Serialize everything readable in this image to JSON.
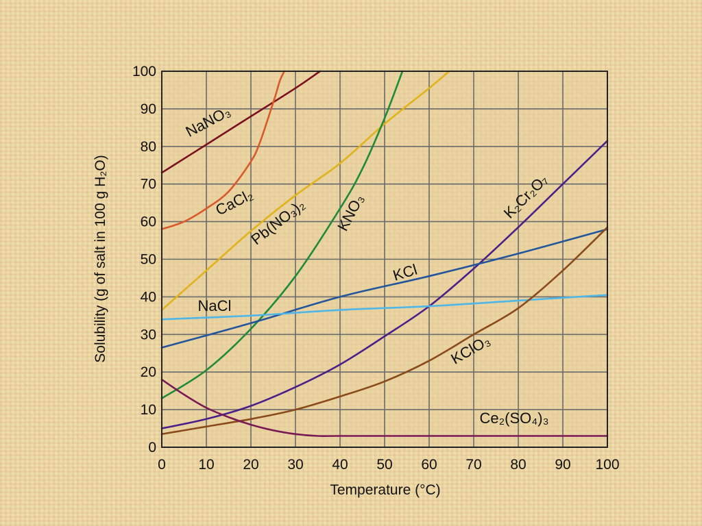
{
  "chart_data": {
    "type": "line",
    "title": "",
    "xlabel": "Temperature (°C)",
    "ylabel": "Solubility (g of salt in 100 g H₂O)",
    "xlim": [
      0,
      100
    ],
    "ylim": [
      0,
      100
    ],
    "xticks": [
      0,
      10,
      20,
      30,
      40,
      50,
      60,
      70,
      80,
      90,
      100
    ],
    "yticks": [
      0,
      10,
      20,
      30,
      40,
      50,
      60,
      70,
      80,
      90,
      100
    ],
    "grid": true,
    "legend": "inline labels",
    "series": [
      {
        "name": "NaNO₃",
        "color": "#7a1020",
        "x": [
          0,
          10,
          20,
          30,
          35.5
        ],
        "y": [
          73,
          80.5,
          88,
          95.5,
          100
        ]
      },
      {
        "name": "CaCl₂",
        "color": "#d9592a",
        "x": [
          0,
          5,
          10,
          15,
          20,
          22,
          24,
          25.5,
          26.5,
          27.5
        ],
        "y": [
          58,
          60,
          63.5,
          68,
          76,
          81,
          88,
          93.5,
          97.5,
          100
        ]
      },
      {
        "name": "Pb(NO₃)₂",
        "color": "#e2b21a",
        "x": [
          0,
          10,
          20,
          30,
          40,
          50,
          60,
          64.5
        ],
        "y": [
          36.5,
          47,
          57.5,
          67,
          75.5,
          86,
          95.5,
          100
        ]
      },
      {
        "name": "KNO₃",
        "color": "#1f8a3a",
        "x": [
          0,
          10,
          20,
          30,
          40,
          45,
          50,
          54
        ],
        "y": [
          13,
          20.5,
          31.5,
          45.5,
          63.5,
          74,
          87.5,
          100
        ]
      },
      {
        "name": "K₂Cr₂O₇",
        "color": "#4a1f8a",
        "x": [
          0,
          10,
          20,
          30,
          40,
          50,
          60,
          70,
          80,
          90,
          100
        ],
        "y": [
          5,
          7.5,
          11,
          16,
          22,
          29.5,
          37.5,
          47.5,
          58.5,
          70,
          81.5
        ]
      },
      {
        "name": "KCl",
        "color": "#23559c",
        "x": [
          0,
          20,
          40,
          60,
          80,
          100
        ],
        "y": [
          26.5,
          33,
          40,
          45.5,
          51.5,
          58
        ]
      },
      {
        "name": "NaCl",
        "color": "#4fb7e8",
        "x": [
          0,
          20,
          40,
          60,
          80,
          100
        ],
        "y": [
          34,
          35,
          36.5,
          37.5,
          39,
          40.5
        ]
      },
      {
        "name": "KClO₃",
        "color": "#8a4a1a",
        "x": [
          0,
          10,
          20,
          30,
          40,
          50,
          60,
          70,
          80,
          90,
          100
        ],
        "y": [
          3.5,
          5.5,
          7.5,
          10,
          13.5,
          17.5,
          23,
          30,
          37,
          47,
          58.5
        ]
      },
      {
        "name": "Ce₂(SO₄)₃",
        "color": "#7a1a55",
        "x": [
          0,
          5,
          10,
          15,
          20,
          25,
          30,
          35,
          40,
          60,
          80,
          100
        ],
        "y": [
          18,
          14,
          10.5,
          8,
          6,
          4.5,
          3.5,
          3,
          3,
          3,
          3,
          3
        ]
      }
    ]
  }
}
